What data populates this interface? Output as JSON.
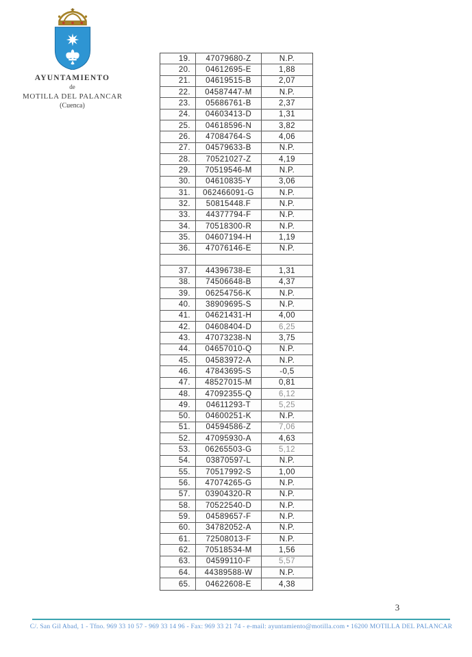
{
  "header": {
    "org_name": "AYUNTAMIENTO",
    "org_de": "de",
    "org_city": "MOTILLA DEL PALANCAR",
    "org_province": "(Cuenca)"
  },
  "colors": {
    "shield_blue": "#2e95d3",
    "crown_gold": "#a6832a",
    "crown_red": "#c23b2e",
    "footer_line_teal": "#3aa3b0",
    "footer_text_blue": "#5e93d2",
    "table_ink": "#262626",
    "faded_ink": "#8f8f8f"
  },
  "table": {
    "columns": [
      "row-number",
      "dni",
      "score"
    ],
    "rows": [
      {
        "num": "19.",
        "id": "47079680-Z",
        "score": "N.P."
      },
      {
        "num": "20.",
        "id": "04612695-E",
        "score": "1,88"
      },
      {
        "num": "21.",
        "id": "04619515-B",
        "score": "2,07"
      },
      {
        "num": "22.",
        "id": "04587447-M",
        "score": "N.P."
      },
      {
        "num": "23.",
        "id": "05686761-B",
        "score": "2,37"
      },
      {
        "num": "24.",
        "id": "04603413-D",
        "score": "1,31"
      },
      {
        "num": "25.",
        "id": "04618596-N",
        "score": "3,82"
      },
      {
        "num": "26.",
        "id": "47084764-S",
        "score": "4,06"
      },
      {
        "num": "27.",
        "id": "04579633-B",
        "score": "N.P."
      },
      {
        "num": "28.",
        "id": "70521027-Z",
        "score": "4,19"
      },
      {
        "num": "29.",
        "id": "70519546-M",
        "score": "N.P."
      },
      {
        "num": "30.",
        "id": "04610835-Y",
        "score": "3,06"
      },
      {
        "num": "31.",
        "id": "062466091-G",
        "score": "N.P."
      },
      {
        "num": "32.",
        "id": "50815448.F",
        "score": "N.P."
      },
      {
        "num": "33.",
        "id": "44377794-F",
        "score": "N.P."
      },
      {
        "num": "34.",
        "id": "70518300-R",
        "score": "N.P."
      },
      {
        "num": "35.",
        "id": "04607194-H",
        "score": "1,19"
      },
      {
        "num": "36.",
        "id": "47076146-E",
        "score": "N.P."
      },
      {
        "num": "",
        "id": "",
        "score": ""
      },
      {
        "num": "37.",
        "id": "44396738-E",
        "score": "1,31"
      },
      {
        "num": "38.",
        "id": "74506648-B",
        "score": "4,37"
      },
      {
        "num": "39.",
        "id": "06254756-K",
        "score": "N.P."
      },
      {
        "num": "40.",
        "id": "38909695-S",
        "score": "N.P."
      },
      {
        "num": "41.",
        "id": "04621431-H",
        "score": "4,00"
      },
      {
        "num": "42.",
        "id": "04608404-D",
        "score": "6,25",
        "light": true
      },
      {
        "num": "43.",
        "id": "47073238-N",
        "score": "3,75"
      },
      {
        "num": "44.",
        "id": "04657010-Q",
        "score": "N.P."
      },
      {
        "num": "45.",
        "id": "04583972-A",
        "score": "N.P."
      },
      {
        "num": "46.",
        "id": "47843695-S",
        "score": "-0,5"
      },
      {
        "num": "47.",
        "id": "48527015-M",
        "score": "0,81"
      },
      {
        "num": "48.",
        "id": "47092355-Q",
        "score": "6,12",
        "light": true
      },
      {
        "num": "49.",
        "id": "04611293-T",
        "score": "5,25",
        "light": true
      },
      {
        "num": "50.",
        "id": "04600251-K",
        "score": "N.P."
      },
      {
        "num": "51.",
        "id": "04594586-Z",
        "score": "7,06",
        "light": true
      },
      {
        "num": "52.",
        "id": "47095930-A",
        "score": "4,63"
      },
      {
        "num": "53.",
        "id": "06265503-G",
        "score": "5,12",
        "light": true
      },
      {
        "num": "54.",
        "id": "03870597-L",
        "score": "N.P."
      },
      {
        "num": "55.",
        "id": "70517992-S",
        "score": "1,00"
      },
      {
        "num": "56.",
        "id": "47074265-G",
        "score": "N.P."
      },
      {
        "num": "57.",
        "id": "03904320-R",
        "score": "N.P."
      },
      {
        "num": "58.",
        "id": "70522540-D",
        "score": "N.P."
      },
      {
        "num": "59.",
        "id": "04589657-F",
        "score": "N.P."
      },
      {
        "num": "60.",
        "id": "34782052-A",
        "score": "N.P."
      },
      {
        "num": "61.",
        "id": "72508013-F",
        "score": "N.P."
      },
      {
        "num": "62.",
        "id": "70518534-M",
        "score": "1,56"
      },
      {
        "num": "63.",
        "id": "04599110-F",
        "score": "5,57",
        "light": true
      },
      {
        "num": "64.",
        "id": "44389588-W",
        "score": "N.P."
      },
      {
        "num": "65.",
        "id": "04622608-E",
        "score": "4,38"
      }
    ]
  },
  "footer": {
    "page_number": "3",
    "contact": "C/. San Gil Abad, 1 - Tfno. 969 33 10 57 - 969 33 14 96  -  Fax: 969 33 21 74  -  e-mail: ayuntamiento@motilla.com  •  16200 MOTILLA DEL PALANCAR"
  }
}
